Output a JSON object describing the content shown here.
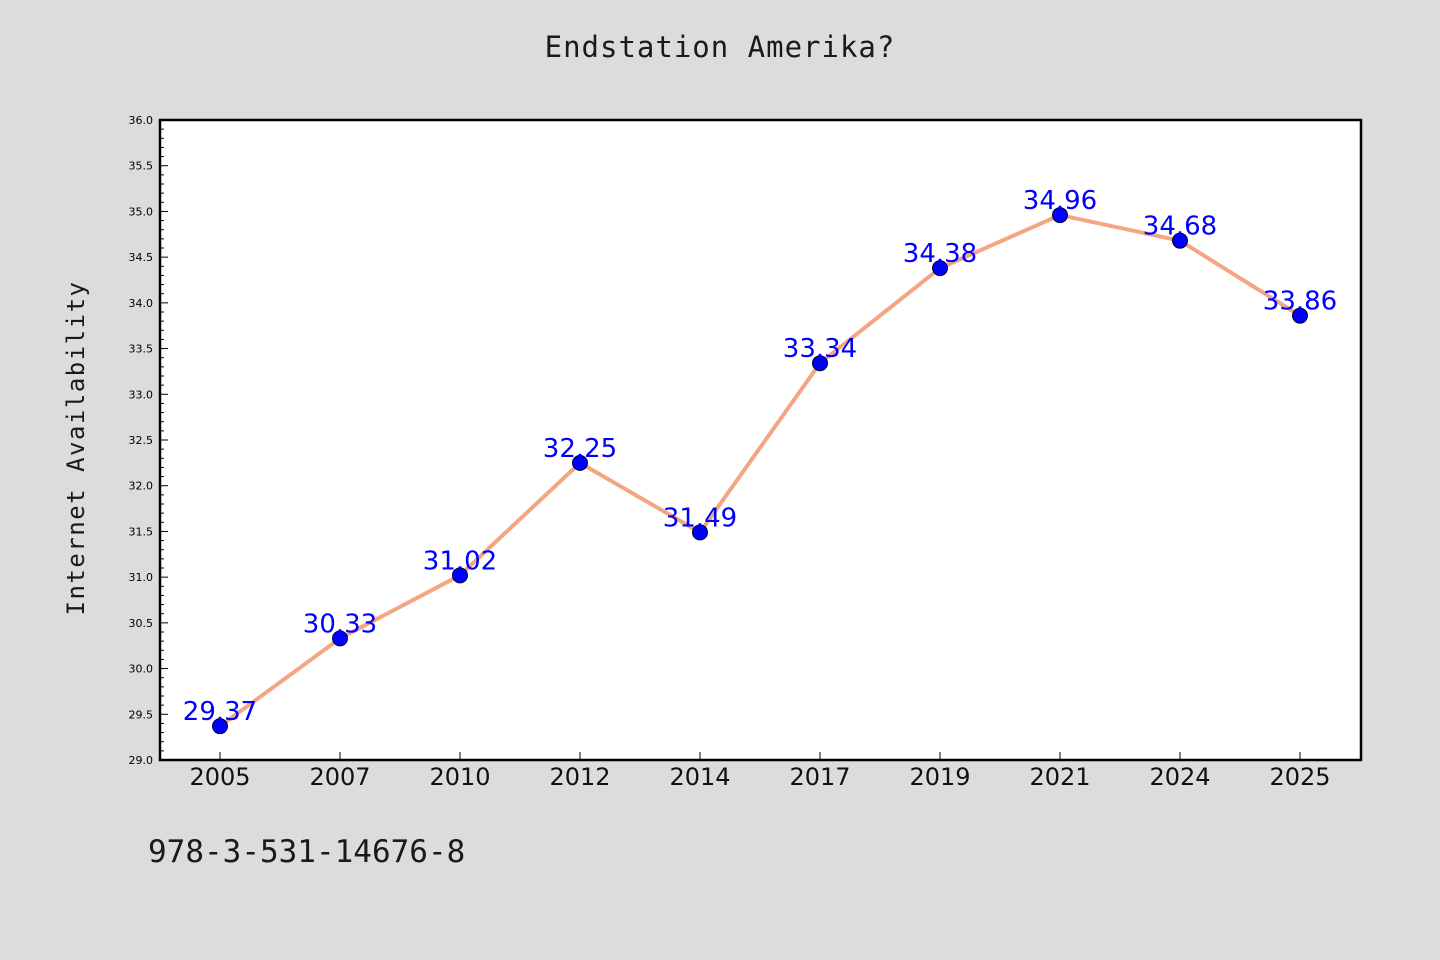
{
  "chart_data": {
    "type": "line",
    "title": "Endstation Amerika?",
    "xlabel": "",
    "ylabel": "Internet Availability",
    "categories": [
      "2005",
      "2007",
      "2010",
      "2012",
      "2014",
      "2017",
      "2019",
      "2021",
      "2024",
      "2025"
    ],
    "series": [
      {
        "values": [
          29.37,
          30.33,
          31.02,
          32.25,
          31.49,
          33.34,
          34.38,
          34.96,
          34.68,
          33.86
        ]
      }
    ],
    "ylim": [
      29.0,
      36.0
    ],
    "yticks": [
      "29.0",
      "29.5",
      "30.0",
      "30.5",
      "31.0",
      "31.5",
      "32.0",
      "32.5",
      "33.0",
      "33.5",
      "34.0",
      "34.5",
      "35.0",
      "35.5",
      "36.0"
    ],
    "data_labels": [
      "29.37",
      "30.33",
      "31.02",
      "32.25",
      "31.49",
      "33.34",
      "34.38",
      "34.96",
      "34.68",
      "33.86"
    ],
    "grid": false,
    "line_color": "#f4a582",
    "marker_color": "#0000ff",
    "label_color": "#0000ff"
  },
  "footer": {
    "code": "978-3-531-14676-8"
  }
}
